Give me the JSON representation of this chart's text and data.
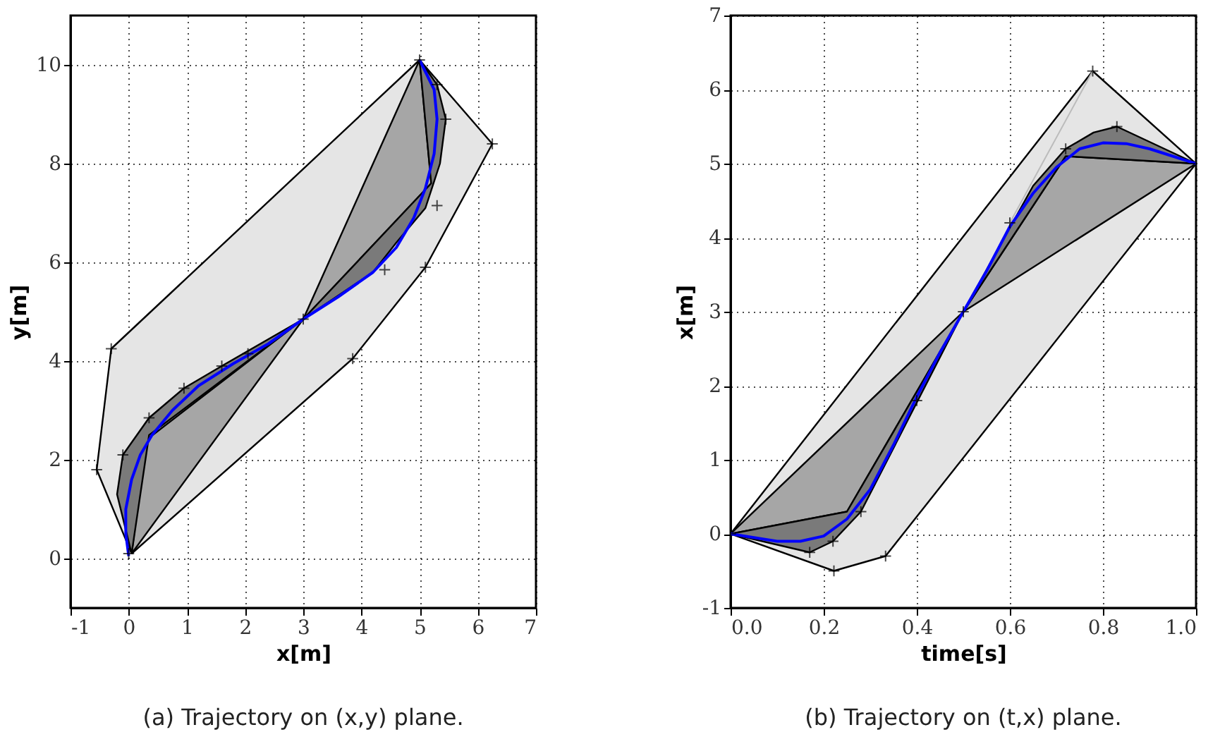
{
  "chart_data": [
    {
      "type": "line",
      "xlabel": "x[m]",
      "ylabel": "y[m]",
      "xlim": [
        -1,
        7
      ],
      "ylim": [
        -1,
        11
      ],
      "xticks": [
        -1,
        0,
        1,
        2,
        3,
        4,
        5,
        6,
        7
      ],
      "yticks": [
        0,
        2,
        4,
        6,
        8,
        10
      ],
      "grid": true,
      "annotations": [
        "(a) Trajectory on (x,y) plane."
      ],
      "series": [
        {
          "type": "area",
          "color": "#e5e5e5",
          "x": [
            0.05,
            -0.55,
            -0.3,
            5.0,
            6.25,
            5.1,
            3.85,
            0.05
          ],
          "values": [
            0.1,
            1.8,
            4.25,
            10.1,
            8.4,
            5.9,
            4.05,
            0.1
          ]
        },
        {
          "type": "area",
          "color": "#a6a6a6",
          "x": [
            0.05,
            0.3,
            3.0,
            0.05
          ],
          "values": [
            0.1,
            2.4,
            4.85,
            0.1
          ]
        },
        {
          "type": "area",
          "color": "#a6a6a6",
          "x": [
            3.0,
            5.2,
            5.0,
            3.0
          ],
          "values": [
            4.85,
            7.6,
            10.1,
            4.85
          ]
        },
        {
          "type": "area",
          "color": "#7a7a7a",
          "x": [
            0.05,
            -0.2,
            -0.1,
            0.35,
            0.95,
            1.6,
            3.0,
            0.35,
            0.05
          ],
          "values": [
            0.1,
            1.3,
            2.1,
            2.85,
            3.45,
            3.9,
            4.85,
            2.5,
            0.1
          ]
        },
        {
          "type": "area",
          "color": "#7a7a7a",
          "x": [
            3.0,
            4.2,
            4.6,
            5.1,
            5.35,
            5.45,
            5.3,
            5.0,
            5.2,
            3.0
          ],
          "values": [
            4.85,
            5.8,
            6.4,
            7.1,
            8.0,
            8.9,
            9.6,
            10.1,
            7.6,
            4.85
          ]
        },
        {
          "color": "#0000ff",
          "x": [
            0,
            -0.05,
            -0.05,
            0.05,
            0.2,
            0.4,
            0.75,
            1.2,
            1.8,
            2.4,
            3,
            3.6,
            4.2,
            4.6,
            4.9,
            5.1,
            5.25,
            5.3,
            5.25,
            5
          ],
          "values": [
            0.05,
            0.5,
            1,
            1.6,
            2.1,
            2.5,
            3.0,
            3.5,
            3.95,
            4.35,
            4.85,
            5.3,
            5.8,
            6.3,
            6.9,
            7.5,
            8.2,
            8.9,
            9.5,
            10.1
          ]
        },
        {
          "type": "scatter",
          "marker": "cross",
          "color": "#000000",
          "x": [
            -0.55,
            -0.3,
            3.85,
            5.1,
            6.25,
            0.35,
            0.95,
            -0.1,
            4.4,
            5.3,
            5.45,
            5.3,
            1.6,
            2.05,
            0,
            3,
            5
          ],
          "values": [
            1.8,
            4.25,
            4.05,
            5.9,
            8.4,
            2.85,
            3.45,
            2.1,
            5.85,
            7.15,
            8.9,
            9.6,
            3.9,
            4.15,
            0.1,
            4.85,
            10.1
          ]
        }
      ]
    },
    {
      "type": "line",
      "xlabel": "time[s]",
      "ylabel": "x[m]",
      "xlim": [
        0,
        1
      ],
      "ylim": [
        -1,
        7
      ],
      "xticks": [
        {
          "value": 0,
          "label": "0.0"
        },
        {
          "value": 0.2,
          "label": "0.2"
        },
        {
          "value": 0.4,
          "label": "0.4"
        },
        {
          "value": 0.6,
          "label": "0.6"
        },
        {
          "value": 0.8,
          "label": "0.8"
        },
        {
          "value": 1,
          "label": "1.0"
        }
      ],
      "yticks": [
        -1,
        0,
        1,
        2,
        3,
        4,
        5,
        6,
        7
      ],
      "grid": true,
      "annotations": [
        "(b) Trajectory on (t,x) plane."
      ],
      "series": [
        {
          "type": "area",
          "color": "#e5e5e5",
          "x": [
            0,
            0.778,
            1,
            0.333,
            0.222,
            0
          ],
          "values": [
            0,
            6.25,
            5,
            -0.3,
            -0.5,
            0
          ]
        },
        {
          "type": "area",
          "color": "#a6a6a6",
          "x": [
            0,
            0.5,
            0.25,
            0
          ],
          "values": [
            0,
            3,
            0.3,
            0
          ]
        },
        {
          "type": "area",
          "color": "#a6a6a6",
          "x": [
            0.5,
            1,
            0.72,
            0.5
          ],
          "values": [
            3,
            5,
            5.1,
            3
          ]
        },
        {
          "type": "area",
          "color": "#7a7a7a",
          "x": [
            0,
            0.17,
            0.22,
            0.28,
            0.5,
            0.25,
            0
          ],
          "values": [
            0,
            -0.25,
            -0.1,
            0.3,
            3,
            0.3,
            0
          ]
        },
        {
          "type": "area",
          "color": "#7a7a7a",
          "x": [
            0.5,
            0.65,
            0.72,
            0.78,
            0.83,
            1,
            0.72,
            0.5
          ],
          "values": [
            3,
            4.7,
            5.2,
            5.42,
            5.5,
            5,
            5.1,
            3
          ]
        },
        {
          "color": "#bbbbbb",
          "x": [
            0.6,
            0.778
          ],
          "values": [
            4.2,
            6.25
          ]
        },
        {
          "color": "#0000ff",
          "x": [
            0,
            0.05,
            0.1,
            0.15,
            0.2,
            0.25,
            0.3,
            0.35,
            0.4,
            0.45,
            0.5,
            0.55,
            0.6,
            0.65,
            0.7,
            0.75,
            0.8,
            0.85,
            0.9,
            0.95,
            1
          ],
          "values": [
            0,
            -0.05,
            -0.1,
            -0.1,
            -0.03,
            0.2,
            0.6,
            1.2,
            1.85,
            2.45,
            3,
            3.55,
            4.15,
            4.6,
            4.95,
            5.2,
            5.28,
            5.27,
            5.2,
            5.1,
            5
          ]
        },
        {
          "type": "scatter",
          "marker": "cross",
          "color": "#000000",
          "x": [
            0.222,
            0.333,
            0.778,
            0.17,
            0.22,
            0.28,
            0.72,
            0.83,
            0.5,
            0,
            1,
            0.4,
            0.6
          ],
          "values": [
            -0.5,
            -0.3,
            6.25,
            -0.25,
            -0.1,
            0.3,
            5.2,
            5.5,
            3,
            0,
            5,
            1.8,
            4.2
          ]
        }
      ]
    }
  ]
}
